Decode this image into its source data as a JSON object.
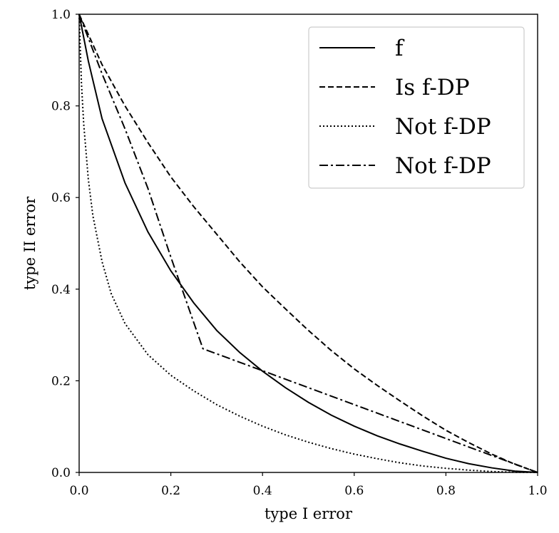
{
  "chart_data": {
    "type": "line",
    "title": "",
    "xlabel": "type I error",
    "ylabel": "type II error",
    "xlim": [
      0.0,
      1.0
    ],
    "ylim": [
      0.0,
      1.0
    ],
    "xticks": [
      "0.0",
      "0.2",
      "0.4",
      "0.6",
      "0.8",
      "1.0"
    ],
    "yticks": [
      "0.0",
      "0.2",
      "0.4",
      "0.6",
      "0.8",
      "1.0"
    ],
    "grid": false,
    "legend_position": "top-right",
    "series": [
      {
        "name": "f",
        "style": "solid",
        "x": [
          0.0,
          0.02,
          0.05,
          0.1,
          0.15,
          0.2,
          0.25,
          0.3,
          0.35,
          0.4,
          0.45,
          0.5,
          0.55,
          0.6,
          0.65,
          0.7,
          0.75,
          0.8,
          0.85,
          0.9,
          0.95,
          1.0
        ],
        "y": [
          1.0,
          0.898,
          0.772,
          0.632,
          0.525,
          0.44,
          0.37,
          0.31,
          0.262,
          0.221,
          0.185,
          0.153,
          0.125,
          0.101,
          0.08,
          0.062,
          0.046,
          0.031,
          0.019,
          0.01,
          0.003,
          0.0
        ]
      },
      {
        "name": "Is f-DP",
        "style": "dashed",
        "x": [
          0.0,
          0.05,
          0.1,
          0.15,
          0.2,
          0.25,
          0.3,
          0.35,
          0.4,
          0.45,
          0.5,
          0.55,
          0.6,
          0.65,
          0.7,
          0.75,
          0.8,
          0.85,
          0.9,
          0.95,
          1.0
        ],
        "y": [
          1.0,
          0.89,
          0.8,
          0.72,
          0.645,
          0.58,
          0.52,
          0.46,
          0.405,
          0.357,
          0.31,
          0.266,
          0.226,
          0.19,
          0.156,
          0.123,
          0.092,
          0.065,
          0.04,
          0.018,
          0.0
        ]
      },
      {
        "name": "Not f-DP",
        "style": "dotted",
        "x": [
          0.0,
          0.005,
          0.01,
          0.02,
          0.03,
          0.05,
          0.07,
          0.1,
          0.15,
          0.2,
          0.25,
          0.3,
          0.35,
          0.4,
          0.45,
          0.5,
          0.55,
          0.6,
          0.65,
          0.7,
          0.75,
          0.8,
          0.85,
          0.9,
          0.95,
          1.0
        ],
        "y": [
          1.0,
          0.85,
          0.76,
          0.64,
          0.56,
          0.46,
          0.39,
          0.325,
          0.257,
          0.212,
          0.178,
          0.148,
          0.123,
          0.101,
          0.082,
          0.066,
          0.052,
          0.04,
          0.03,
          0.021,
          0.014,
          0.009,
          0.005,
          0.002,
          0.0005,
          0.0
        ]
      },
      {
        "name": "Not f-DP",
        "style": "dashdot",
        "x": [
          0.0,
          0.05,
          0.1,
          0.15,
          0.2,
          0.27,
          0.4,
          0.5,
          0.6,
          0.7,
          0.8,
          0.9,
          1.0
        ],
        "y": [
          1.0,
          0.87,
          0.75,
          0.62,
          0.47,
          0.27,
          0.222,
          0.185,
          0.148,
          0.111,
          0.074,
          0.037,
          0.0
        ]
      }
    ]
  }
}
